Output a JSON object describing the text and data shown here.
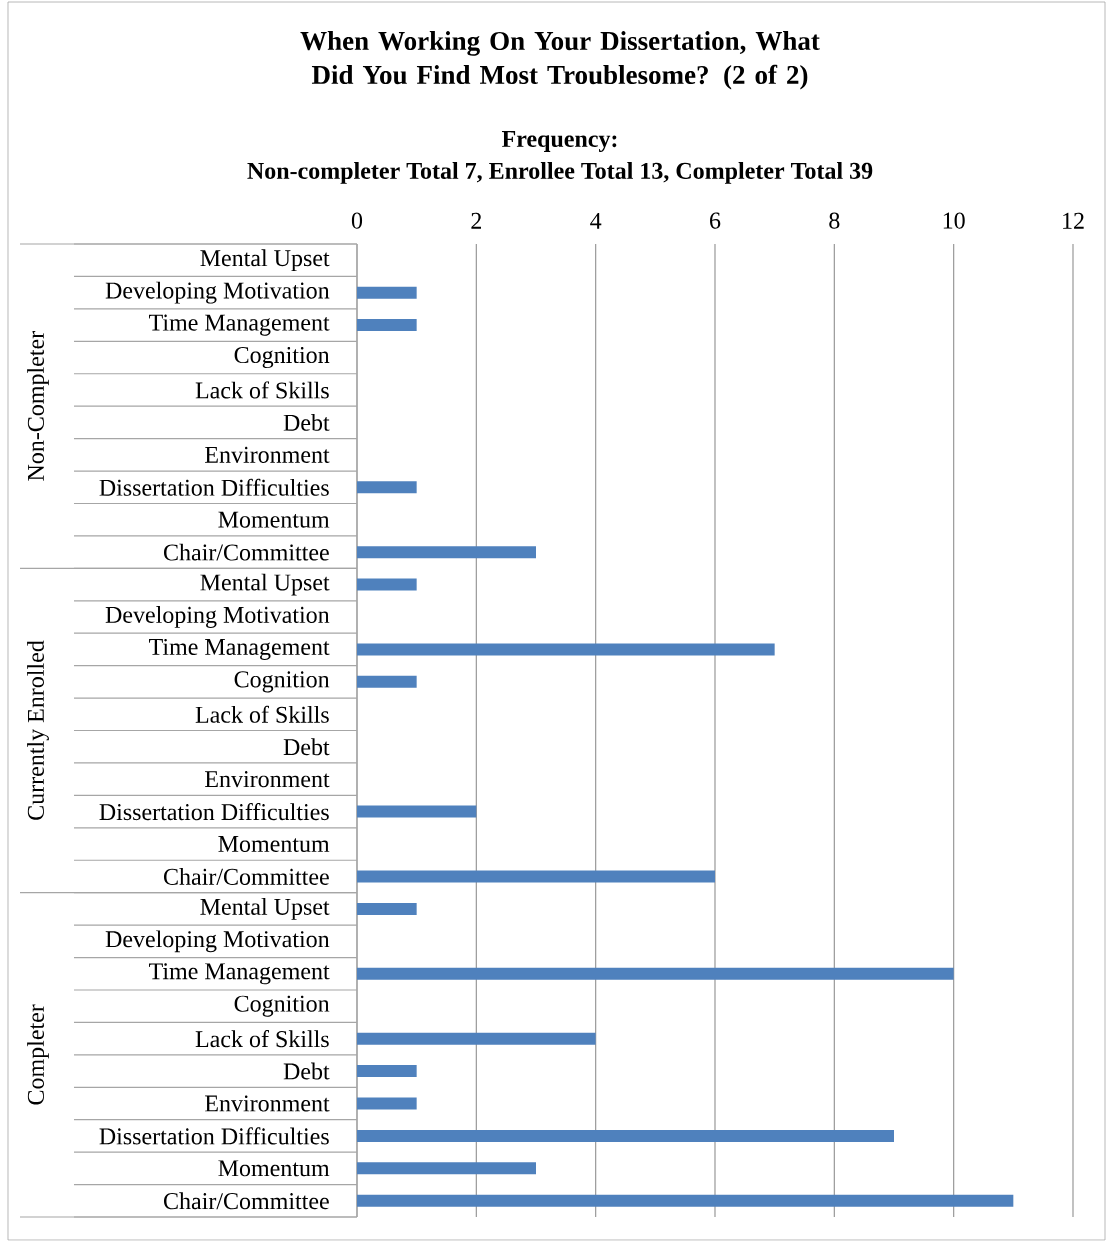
{
  "chart_data": {
    "type": "bar",
    "orientation": "horizontal",
    "title": "When Working On Your Dissertation, What Did You Find Most Troublesome? (2 of 2)",
    "xlabel": "Frequency:",
    "subtitle": "Non-completer Total 7, Enrollee Total 13, Completer Total 39",
    "categories": [
      "Mental Upset",
      "Developing Motivation",
      "Time Management",
      "Cognition",
      "Lack of Skills",
      "Debt",
      "Environment",
      "Dissertation Difficulties",
      "Momentum",
      "Chair/Committee",
      "Mental Upset",
      "Developing Motivation",
      "Time Management",
      "Cognition",
      "Lack of Skills",
      "Debt",
      "Environment",
      "Dissertation Difficulties",
      "Momentum",
      "Chair/Committee",
      "Mental Upset",
      "Developing Motivation",
      "Time Management",
      "Cognition",
      "Lack of Skills",
      "Debt",
      "Environment",
      "Dissertation Difficulties",
      "Momentum",
      "Chair/Committee"
    ],
    "values": [
      0,
      1,
      1,
      0,
      0,
      0,
      0,
      1,
      0,
      3,
      1,
      0,
      7,
      1,
      0,
      0,
      0,
      2,
      0,
      6,
      1,
      0,
      10,
      0,
      4,
      1,
      1,
      9,
      3,
      11
    ],
    "color": "#4f81bd",
    "annotations": [
      "Non-Completer",
      "Currently Enrolled",
      "Completer"
    ],
    "xlim": [
      0,
      12
    ],
    "xticks": [
      0,
      2,
      4,
      6,
      8,
      10,
      12
    ],
    "grid": "x"
  }
}
